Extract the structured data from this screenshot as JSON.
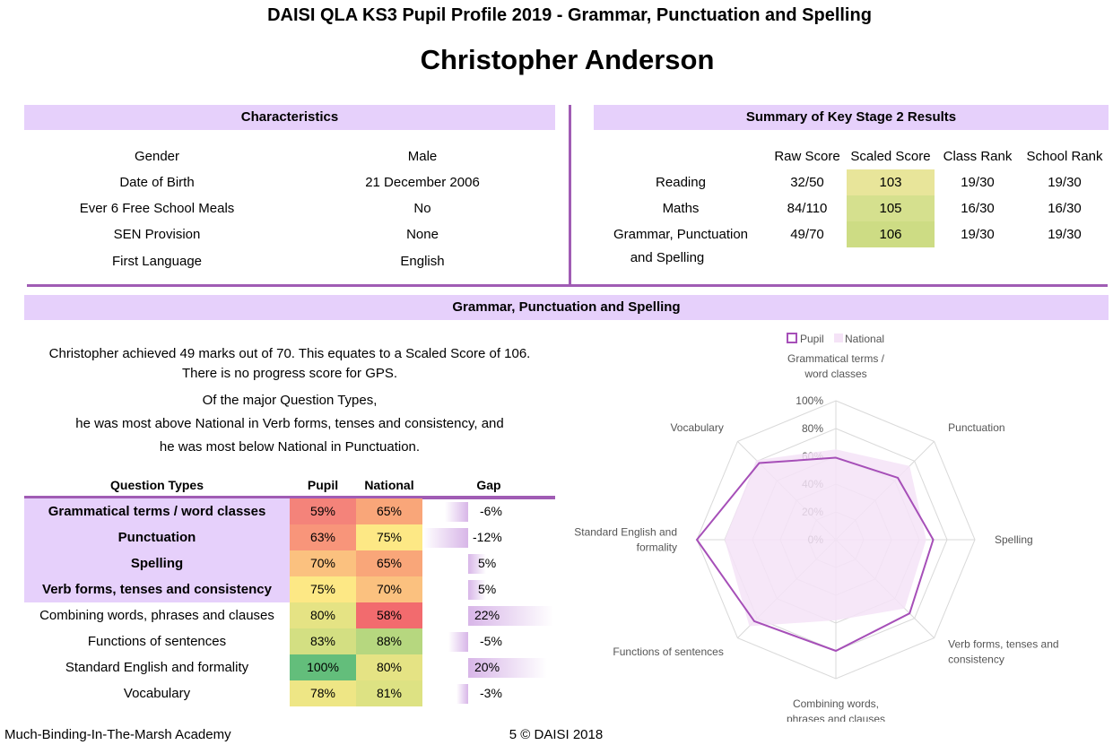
{
  "header": {
    "title": "DAISI QLA KS3 Pupil Profile 2019 - Grammar, Punctuation and Spelling",
    "pupil_name": "Christopher Anderson"
  },
  "characteristics": {
    "heading": "Characteristics",
    "rows": [
      {
        "label": "Gender",
        "value": "Male"
      },
      {
        "label": "Date of Birth",
        "value": "21 December 2006"
      },
      {
        "label": "Ever 6 Free School Meals",
        "value": "No"
      },
      {
        "label": "SEN Provision",
        "value": "None"
      },
      {
        "label": "First Language",
        "value": "English"
      }
    ]
  },
  "ks2": {
    "heading": "Summary of Key Stage 2 Results",
    "columns": [
      "Raw Score",
      "Scaled Score",
      "Class Rank",
      "School Rank"
    ],
    "rows": [
      {
        "subject": "Reading",
        "raw": "32/50",
        "scaled": "103",
        "class_rank": "19/30",
        "school_rank": "19/30",
        "scaled_color": "#e8e59a"
      },
      {
        "subject": "Maths",
        "raw": "84/110",
        "scaled": "105",
        "class_rank": "16/30",
        "school_rank": "16/30",
        "scaled_color": "#d5e08e"
      },
      {
        "subject": "Grammar, Punctuation",
        "subject_line2": "and Spelling",
        "raw": "49/70",
        "scaled": "106",
        "class_rank": "19/30",
        "school_rank": "19/30",
        "scaled_color": "#cddc84"
      }
    ]
  },
  "gps": {
    "heading": "Grammar, Punctuation and Spelling",
    "summary": [
      "Christopher achieved 49 marks out of 70. This equates to a Scaled Score of 106.",
      "There is no progress score for GPS.",
      "Of the major Question Types,",
      "he was most above National in Verb forms, tenses and consistency, and",
      "he was most below National in Punctuation."
    ],
    "table_headers": {
      "type": "Question Types",
      "pupil": "Pupil",
      "national": "National",
      "gap": "Gap"
    },
    "rows": [
      {
        "type": "Grammatical terms / word classes",
        "major": true,
        "pupil": "59%",
        "national": "65%",
        "gap": "-6%",
        "gap_value": -6,
        "pupil_color": "#f4837a",
        "national_color": "#f9a679"
      },
      {
        "type": "Punctuation",
        "major": true,
        "pupil": "63%",
        "national": "75%",
        "gap": "-12%",
        "gap_value": -12,
        "pupil_color": "#f8957a",
        "national_color": "#fde885"
      },
      {
        "type": "Spelling",
        "major": true,
        "pupil": "70%",
        "national": "65%",
        "gap": "5%",
        "gap_value": 5,
        "pupil_color": "#fbc17f",
        "national_color": "#f9a679"
      },
      {
        "type": "Verb forms, tenses and consistency",
        "major": true,
        "pupil": "75%",
        "national": "70%",
        "gap": "5%",
        "gap_value": 5,
        "pupil_color": "#fde885",
        "national_color": "#fbc17f"
      },
      {
        "type": "Combining words, phrases and clauses",
        "major": false,
        "pupil": "80%",
        "national": "58%",
        "gap": "22%",
        "gap_value": 22,
        "pupil_color": "#e5e384",
        "national_color": "#f26b6e"
      },
      {
        "type": "Functions of sentences",
        "major": false,
        "pupil": "83%",
        "national": "88%",
        "gap": "-5%",
        "gap_value": -5,
        "pupil_color": "#d3df82",
        "national_color": "#b6d77f"
      },
      {
        "type": "Standard English and formality",
        "major": false,
        "pupil": "100%",
        "national": "80%",
        "gap": "20%",
        "gap_value": 20,
        "pupil_color": "#63be7b",
        "national_color": "#e5e384"
      },
      {
        "type": "Vocabulary",
        "major": false,
        "pupil": "78%",
        "national": "81%",
        "gap": "-3%",
        "gap_value": -3,
        "pupil_color": "#eee685",
        "national_color": "#dde283"
      }
    ]
  },
  "chart_data": {
    "type": "radar",
    "legend": [
      "Pupil",
      "National"
    ],
    "legend_position": "top",
    "axes": [
      "Grammatical terms / word classes",
      "Punctuation",
      "Spelling",
      "Verb forms, tenses and consistency",
      "Combining words, phrases and clauses",
      "Functions of sentences",
      "Standard English and formality",
      "Vocabulary"
    ],
    "axis_label_lines": [
      [
        "Grammatical terms /",
        "word classes"
      ],
      [
        "Punctuation"
      ],
      [
        "Spelling"
      ],
      [
        "Verb forms, tenses and",
        "consistency"
      ],
      [
        "Combining words,",
        "phrases and clauses"
      ],
      [
        "Functions of sentences"
      ],
      [
        "Standard English and",
        "formality"
      ],
      [
        "Vocabulary"
      ]
    ],
    "ticks": [
      "0%",
      "20%",
      "40%",
      "60%",
      "80%",
      "100%"
    ],
    "range": [
      0,
      100
    ],
    "series": [
      {
        "name": "Pupil",
        "values": [
          59,
          63,
          70,
          75,
          80,
          83,
          100,
          78
        ],
        "color": "#a64fb8"
      },
      {
        "name": "National",
        "values": [
          65,
          75,
          65,
          70,
          58,
          88,
          80,
          81
        ],
        "color": "#f5e3f7"
      }
    ]
  },
  "footer": {
    "school": "Much-Binding-In-The-Marsh Academy",
    "page": "5 © DAISI 2018"
  }
}
